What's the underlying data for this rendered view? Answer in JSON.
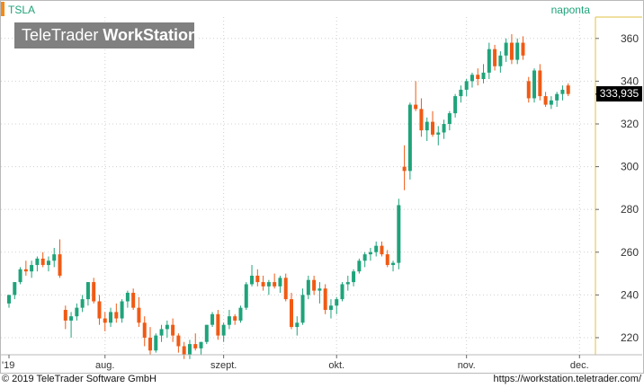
{
  "header": {
    "symbol": "TSLA",
    "interval": "naponta",
    "logo_regular": "TeleTrader ",
    "logo_bold": "WorkStation"
  },
  "price_tag": "333,935",
  "footer": {
    "copyright": "© 2019 TeleTrader Software GmbH",
    "website": "https://workstation.teletrader.com/"
  },
  "colors": {
    "up": "#1fa37a",
    "down": "#f05a14",
    "grid": "#d0d0d0",
    "accent": "#f28a1a"
  },
  "chart_data": {
    "type": "candlestick",
    "title": "",
    "xlabel": "",
    "ylabel": "",
    "ylim": [
      210,
      365
    ],
    "yticks": [
      220,
      240,
      260,
      280,
      300,
      320,
      340,
      360
    ],
    "xticks": [
      {
        "label": "'19",
        "index": 0
      },
      {
        "label": "aug.",
        "index": 17
      },
      {
        "label": "szept.",
        "index": 38
      },
      {
        "label": "okt.",
        "index": 58
      },
      {
        "label": "nov.",
        "index": 81
      },
      {
        "label": "dec.",
        "index": 101
      }
    ],
    "last_price": 333.935,
    "candles": [
      [
        236,
        240,
        234,
        240
      ],
      [
        240,
        246,
        238,
        246
      ],
      [
        246,
        253,
        245,
        252
      ],
      [
        252,
        256,
        249,
        251
      ],
      [
        251,
        256,
        248,
        254
      ],
      [
        254,
        258,
        251,
        257
      ],
      [
        257,
        260,
        253,
        254
      ],
      [
        254,
        258,
        251,
        256
      ],
      [
        256,
        262,
        253,
        259
      ],
      [
        259,
        266,
        248,
        249
      ],
      [
        233,
        235,
        224,
        228
      ],
      [
        228,
        232,
        220,
        230
      ],
      [
        230,
        236,
        228,
        234
      ],
      [
        234,
        240,
        232,
        238
      ],
      [
        238,
        246,
        235,
        246
      ],
      [
        246,
        248,
        236,
        237
      ],
      [
        237,
        240,
        226,
        229
      ],
      [
        229,
        232,
        223,
        227
      ],
      [
        227,
        234,
        225,
        232
      ],
      [
        232,
        236,
        227,
        229
      ],
      [
        229,
        238,
        227,
        237
      ],
      [
        237,
        242,
        234,
        241
      ],
      [
        241,
        243,
        233,
        234
      ],
      [
        234,
        239,
        225,
        227
      ],
      [
        227,
        230,
        216,
        220
      ],
      [
        220,
        225,
        212,
        214
      ],
      [
        214,
        222,
        213,
        221
      ],
      [
        221,
        226,
        218,
        224
      ],
      [
        224,
        228,
        220,
        226
      ],
      [
        226,
        229,
        218,
        221
      ],
      [
        221,
        222,
        213,
        216
      ],
      [
        216,
        218,
        210,
        212
      ],
      [
        212,
        219,
        210,
        217
      ],
      [
        217,
        222,
        214,
        215
      ],
      [
        215,
        218,
        212,
        218
      ],
      [
        218,
        226,
        217,
        226
      ],
      [
        226,
        232,
        225,
        231
      ],
      [
        231,
        233,
        219,
        221
      ],
      [
        221,
        227,
        218,
        226
      ],
      [
        226,
        233,
        224,
        230
      ],
      [
        230,
        231,
        226,
        228
      ],
      [
        228,
        235,
        227,
        234
      ],
      [
        234,
        246,
        233,
        245
      ],
      [
        245,
        254,
        244,
        249
      ],
      [
        249,
        252,
        244,
        246
      ],
      [
        246,
        249,
        242,
        244
      ],
      [
        244,
        247,
        240,
        246
      ],
      [
        246,
        250,
        243,
        244
      ],
      [
        244,
        249,
        241,
        248
      ],
      [
        248,
        250,
        237,
        238
      ],
      [
        238,
        241,
        224,
        225
      ],
      [
        225,
        230,
        221,
        227
      ],
      [
        227,
        243,
        226,
        240
      ],
      [
        240,
        249,
        238,
        247
      ],
      [
        247,
        249,
        240,
        242
      ],
      [
        242,
        246,
        236,
        243
      ],
      [
        243,
        245,
        231,
        233
      ],
      [
        233,
        238,
        229,
        235
      ],
      [
        235,
        239,
        231,
        238
      ],
      [
        238,
        246,
        237,
        245
      ],
      [
        245,
        249,
        242,
        246
      ],
      [
        246,
        252,
        244,
        251
      ],
      [
        251,
        257,
        250,
        256
      ],
      [
        256,
        260,
        253,
        259
      ],
      [
        259,
        262,
        256,
        260
      ],
      [
        260,
        265,
        258,
        263
      ],
      [
        263,
        265,
        258,
        259
      ],
      [
        259,
        261,
        253,
        254
      ],
      [
        254,
        256,
        251,
        255
      ],
      [
        255,
        285,
        252,
        282
      ],
      [
        300,
        310,
        289,
        298
      ],
      [
        298,
        330,
        294,
        329
      ],
      [
        329,
        340,
        326,
        327
      ],
      [
        327,
        332,
        314,
        317
      ],
      [
        317,
        323,
        312,
        321
      ],
      [
        321,
        326,
        314,
        315
      ],
      [
        315,
        319,
        310,
        316
      ],
      [
        316,
        322,
        313,
        320
      ],
      [
        320,
        326,
        317,
        325
      ],
      [
        325,
        334,
        323,
        333
      ],
      [
        333,
        338,
        330,
        336
      ],
      [
        336,
        341,
        333,
        340
      ],
      [
        340,
        344,
        337,
        343
      ],
      [
        343,
        346,
        338,
        341
      ],
      [
        341,
        348,
        339,
        344
      ],
      [
        344,
        358,
        341,
        355
      ],
      [
        355,
        357,
        345,
        347
      ],
      [
        347,
        354,
        344,
        352
      ],
      [
        352,
        360,
        349,
        358
      ],
      [
        358,
        362,
        348,
        350
      ],
      [
        350,
        360,
        348,
        358
      ],
      [
        358,
        361,
        350,
        352
      ],
      [
        340,
        342,
        330,
        332
      ],
      [
        332,
        346,
        330,
        345
      ],
      [
        345,
        348,
        331,
        333
      ],
      [
        333,
        335,
        328,
        329
      ],
      [
        329,
        333,
        327,
        331
      ],
      [
        331,
        335,
        328,
        334
      ],
      [
        334,
        338,
        331,
        336
      ],
      [
        338,
        339,
        333,
        334
      ]
    ]
  }
}
